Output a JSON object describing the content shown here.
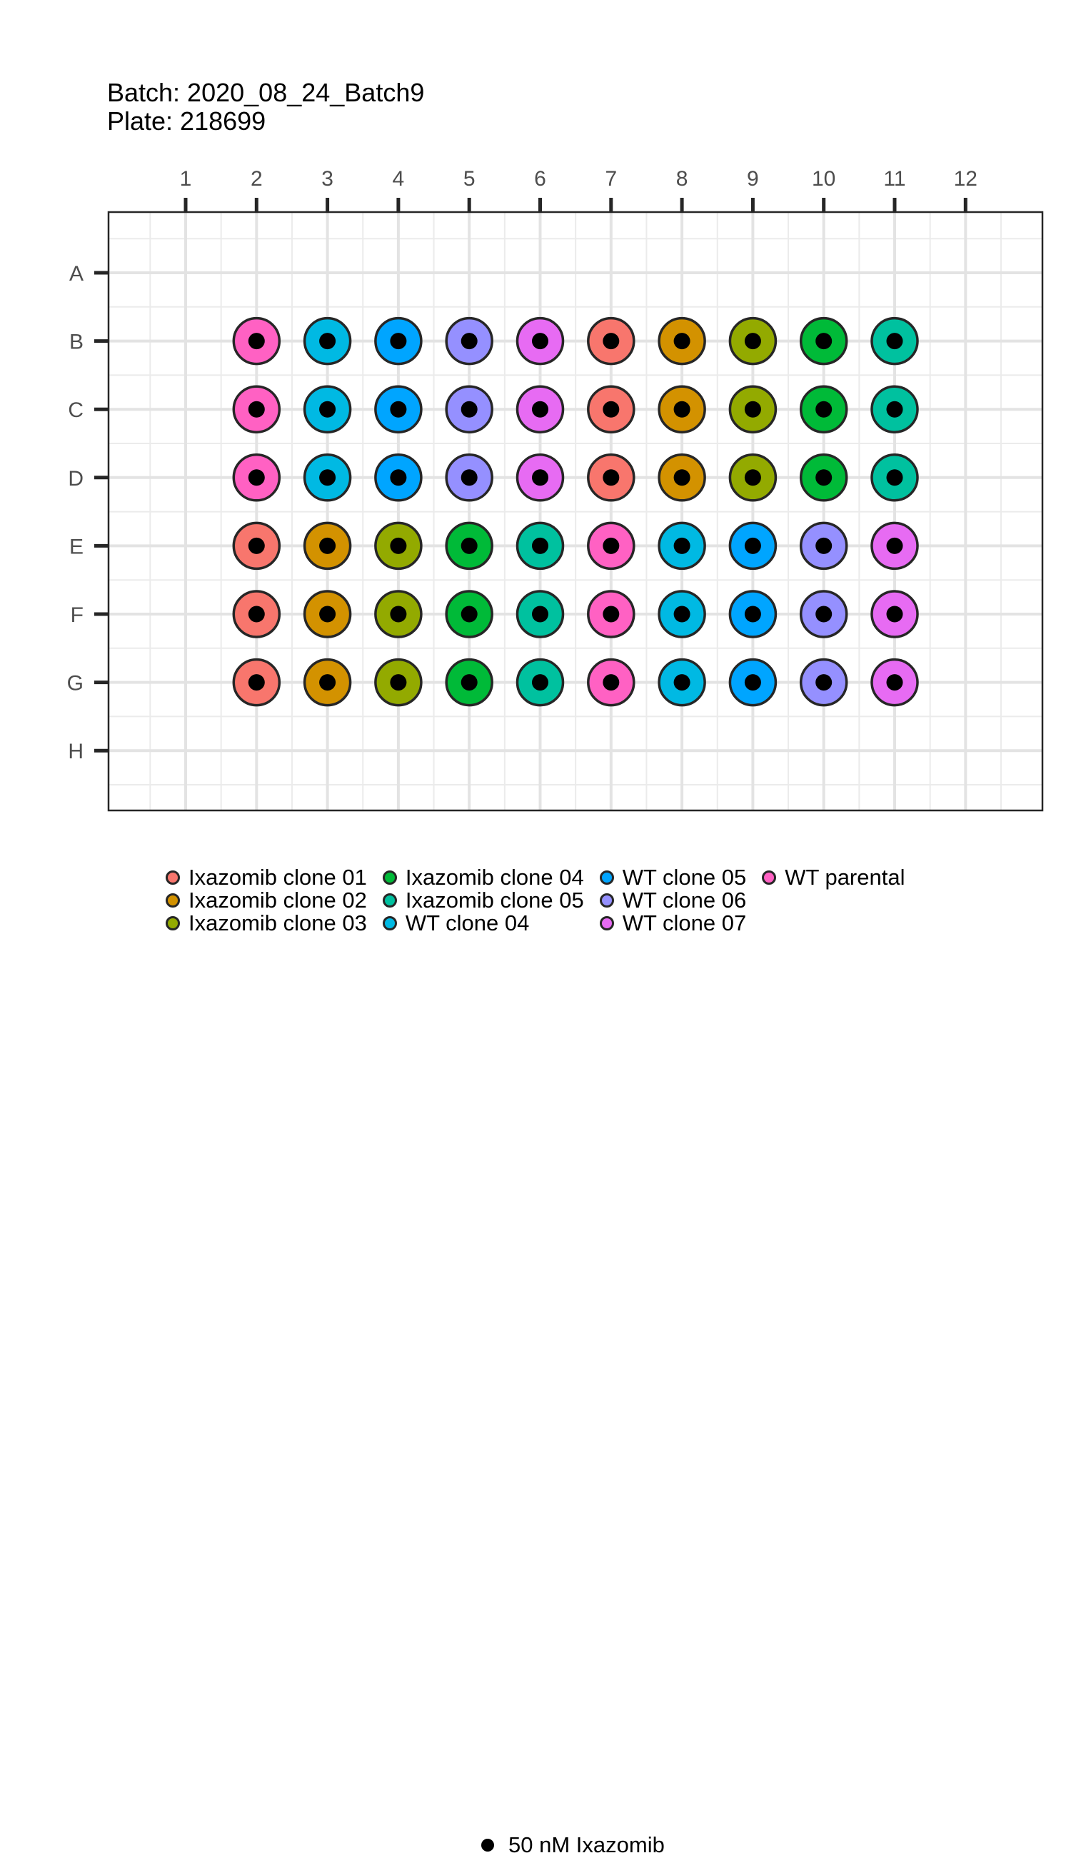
{
  "title": {
    "batch": "Batch: 2020_08_24_Batch9",
    "plate": "Plate: 218699"
  },
  "chart_data": {
    "type": "scatter",
    "columns": [
      "1",
      "2",
      "3",
      "4",
      "5",
      "6",
      "7",
      "8",
      "9",
      "10",
      "11",
      "12"
    ],
    "rows": [
      "A",
      "B",
      "C",
      "D",
      "E",
      "F",
      "G",
      "H"
    ],
    "x_position": "top",
    "grid": true,
    "legend_position": "bottom",
    "colors": {
      "Ixazomib clone 01": "#F8766D",
      "Ixazomib clone 02": "#D39200",
      "Ixazomib clone 03": "#93AA00",
      "Ixazomib clone 04": "#00BA38",
      "Ixazomib clone 05": "#00C19F",
      "WT clone 04": "#00B9E3",
      "WT clone 05": "#00A5FF",
      "WT clone 06": "#9590FF",
      "WT clone 07": "#E76BF3",
      "WT parental": "#FF61C3"
    },
    "legend_fill": [
      "Ixazomib clone 01",
      "Ixazomib clone 02",
      "Ixazomib clone 03",
      "Ixazomib clone 04",
      "Ixazomib clone 05",
      "WT clone 04",
      "WT clone 05",
      "WT clone 06",
      "WT clone 07",
      "WT parental"
    ],
    "legend_treatment": "50 nM Ixazomib",
    "wells": [
      {
        "row": "B",
        "col": 2,
        "fill": "WT parental",
        "treatment": "50 nM Ixazomib"
      },
      {
        "row": "B",
        "col": 3,
        "fill": "WT clone 04",
        "treatment": "50 nM Ixazomib"
      },
      {
        "row": "B",
        "col": 4,
        "fill": "WT clone 05",
        "treatment": "50 nM Ixazomib"
      },
      {
        "row": "B",
        "col": 5,
        "fill": "WT clone 06",
        "treatment": "50 nM Ixazomib"
      },
      {
        "row": "B",
        "col": 6,
        "fill": "WT clone 07",
        "treatment": "50 nM Ixazomib"
      },
      {
        "row": "B",
        "col": 7,
        "fill": "Ixazomib clone 01",
        "treatment": "50 nM Ixazomib"
      },
      {
        "row": "B",
        "col": 8,
        "fill": "Ixazomib clone 02",
        "treatment": "50 nM Ixazomib"
      },
      {
        "row": "B",
        "col": 9,
        "fill": "Ixazomib clone 03",
        "treatment": "50 nM Ixazomib"
      },
      {
        "row": "B",
        "col": 10,
        "fill": "Ixazomib clone 04",
        "treatment": "50 nM Ixazomib"
      },
      {
        "row": "B",
        "col": 11,
        "fill": "Ixazomib clone 05",
        "treatment": "50 nM Ixazomib"
      },
      {
        "row": "C",
        "col": 2,
        "fill": "WT parental",
        "treatment": "50 nM Ixazomib"
      },
      {
        "row": "C",
        "col": 3,
        "fill": "WT clone 04",
        "treatment": "50 nM Ixazomib"
      },
      {
        "row": "C",
        "col": 4,
        "fill": "WT clone 05",
        "treatment": "50 nM Ixazomib"
      },
      {
        "row": "C",
        "col": 5,
        "fill": "WT clone 06",
        "treatment": "50 nM Ixazomib"
      },
      {
        "row": "C",
        "col": 6,
        "fill": "WT clone 07",
        "treatment": "50 nM Ixazomib"
      },
      {
        "row": "C",
        "col": 7,
        "fill": "Ixazomib clone 01",
        "treatment": "50 nM Ixazomib"
      },
      {
        "row": "C",
        "col": 8,
        "fill": "Ixazomib clone 02",
        "treatment": "50 nM Ixazomib"
      },
      {
        "row": "C",
        "col": 9,
        "fill": "Ixazomib clone 03",
        "treatment": "50 nM Ixazomib"
      },
      {
        "row": "C",
        "col": 10,
        "fill": "Ixazomib clone 04",
        "treatment": "50 nM Ixazomib"
      },
      {
        "row": "C",
        "col": 11,
        "fill": "Ixazomib clone 05",
        "treatment": "50 nM Ixazomib"
      },
      {
        "row": "D",
        "col": 2,
        "fill": "WT parental",
        "treatment": "50 nM Ixazomib"
      },
      {
        "row": "D",
        "col": 3,
        "fill": "WT clone 04",
        "treatment": "50 nM Ixazomib"
      },
      {
        "row": "D",
        "col": 4,
        "fill": "WT clone 05",
        "treatment": "50 nM Ixazomib"
      },
      {
        "row": "D",
        "col": 5,
        "fill": "WT clone 06",
        "treatment": "50 nM Ixazomib"
      },
      {
        "row": "D",
        "col": 6,
        "fill": "WT clone 07",
        "treatment": "50 nM Ixazomib"
      },
      {
        "row": "D",
        "col": 7,
        "fill": "Ixazomib clone 01",
        "treatment": "50 nM Ixazomib"
      },
      {
        "row": "D",
        "col": 8,
        "fill": "Ixazomib clone 02",
        "treatment": "50 nM Ixazomib"
      },
      {
        "row": "D",
        "col": 9,
        "fill": "Ixazomib clone 03",
        "treatment": "50 nM Ixazomib"
      },
      {
        "row": "D",
        "col": 10,
        "fill": "Ixazomib clone 04",
        "treatment": "50 nM Ixazomib"
      },
      {
        "row": "D",
        "col": 11,
        "fill": "Ixazomib clone 05",
        "treatment": "50 nM Ixazomib"
      },
      {
        "row": "E",
        "col": 2,
        "fill": "Ixazomib clone 01",
        "treatment": "50 nM Ixazomib"
      },
      {
        "row": "E",
        "col": 3,
        "fill": "Ixazomib clone 02",
        "treatment": "50 nM Ixazomib"
      },
      {
        "row": "E",
        "col": 4,
        "fill": "Ixazomib clone 03",
        "treatment": "50 nM Ixazomib"
      },
      {
        "row": "E",
        "col": 5,
        "fill": "Ixazomib clone 04",
        "treatment": "50 nM Ixazomib"
      },
      {
        "row": "E",
        "col": 6,
        "fill": "Ixazomib clone 05",
        "treatment": "50 nM Ixazomib"
      },
      {
        "row": "E",
        "col": 7,
        "fill": "WT parental",
        "treatment": "50 nM Ixazomib"
      },
      {
        "row": "E",
        "col": 8,
        "fill": "WT clone 04",
        "treatment": "50 nM Ixazomib"
      },
      {
        "row": "E",
        "col": 9,
        "fill": "WT clone 05",
        "treatment": "50 nM Ixazomib"
      },
      {
        "row": "E",
        "col": 10,
        "fill": "WT clone 06",
        "treatment": "50 nM Ixazomib"
      },
      {
        "row": "E",
        "col": 11,
        "fill": "WT clone 07",
        "treatment": "50 nM Ixazomib"
      },
      {
        "row": "F",
        "col": 2,
        "fill": "Ixazomib clone 01",
        "treatment": "50 nM Ixazomib"
      },
      {
        "row": "F",
        "col": 3,
        "fill": "Ixazomib clone 02",
        "treatment": "50 nM Ixazomib"
      },
      {
        "row": "F",
        "col": 4,
        "fill": "Ixazomib clone 03",
        "treatment": "50 nM Ixazomib"
      },
      {
        "row": "F",
        "col": 5,
        "fill": "Ixazomib clone 04",
        "treatment": "50 nM Ixazomib"
      },
      {
        "row": "F",
        "col": 6,
        "fill": "Ixazomib clone 05",
        "treatment": "50 nM Ixazomib"
      },
      {
        "row": "F",
        "col": 7,
        "fill": "WT parental",
        "treatment": "50 nM Ixazomib"
      },
      {
        "row": "F",
        "col": 8,
        "fill": "WT clone 04",
        "treatment": "50 nM Ixazomib"
      },
      {
        "row": "F",
        "col": 9,
        "fill": "WT clone 05",
        "treatment": "50 nM Ixazomib"
      },
      {
        "row": "F",
        "col": 10,
        "fill": "WT clone 06",
        "treatment": "50 nM Ixazomib"
      },
      {
        "row": "F",
        "col": 11,
        "fill": "WT clone 07",
        "treatment": "50 nM Ixazomib"
      },
      {
        "row": "G",
        "col": 2,
        "fill": "Ixazomib clone 01",
        "treatment": "50 nM Ixazomib"
      },
      {
        "row": "G",
        "col": 3,
        "fill": "Ixazomib clone 02",
        "treatment": "50 nM Ixazomib"
      },
      {
        "row": "G",
        "col": 4,
        "fill": "Ixazomib clone 03",
        "treatment": "50 nM Ixazomib"
      },
      {
        "row": "G",
        "col": 5,
        "fill": "Ixazomib clone 04",
        "treatment": "50 nM Ixazomib"
      },
      {
        "row": "G",
        "col": 6,
        "fill": "Ixazomib clone 05",
        "treatment": "50 nM Ixazomib"
      },
      {
        "row": "G",
        "col": 7,
        "fill": "WT parental",
        "treatment": "50 nM Ixazomib"
      },
      {
        "row": "G",
        "col": 8,
        "fill": "WT clone 04",
        "treatment": "50 nM Ixazomib"
      },
      {
        "row": "G",
        "col": 9,
        "fill": "WT clone 05",
        "treatment": "50 nM Ixazomib"
      },
      {
        "row": "G",
        "col": 10,
        "fill": "WT clone 06",
        "treatment": "50 nM Ixazomib"
      },
      {
        "row": "G",
        "col": 11,
        "fill": "WT clone 07",
        "treatment": "50 nM Ixazomib"
      }
    ]
  }
}
